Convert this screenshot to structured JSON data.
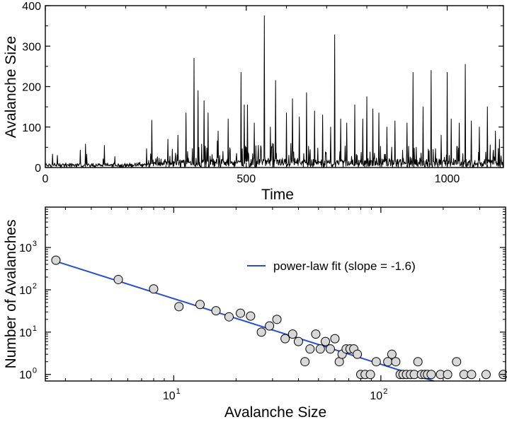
{
  "chart_data": [
    {
      "type": "line",
      "name": "avalanche-time-series",
      "xlabel": "Time",
      "ylabel": "Avalanche Size",
      "xlim": [
        0,
        1140
      ],
      "ylim": [
        0,
        400
      ],
      "xticks": [
        0,
        500,
        1000
      ],
      "xtick_labels": [
        "0",
        "500",
        "1000"
      ],
      "yticks": [
        0,
        100,
        200,
        300,
        400
      ],
      "ytick_labels": [
        "0",
        "100",
        "200",
        "300",
        "400"
      ],
      "line_color": "#000000",
      "series": [
        {
          "name": "avalanche size",
          "peaks": [
            [
              30,
              30
            ],
            [
              100,
              58
            ],
            [
              265,
              117
            ],
            [
              305,
              70
            ],
            [
              330,
              80
            ],
            [
              350,
              135
            ],
            [
              370,
              270
            ],
            [
              380,
              190
            ],
            [
              395,
              165
            ],
            [
              405,
              135
            ],
            [
              430,
              90
            ],
            [
              455,
              120
            ],
            [
              487,
              235
            ],
            [
              495,
              155
            ],
            [
              503,
              155
            ],
            [
              520,
              110
            ],
            [
              545,
              375
            ],
            [
              560,
              100
            ],
            [
              573,
              215
            ],
            [
              600,
              135
            ],
            [
              615,
              170
            ],
            [
              632,
              125
            ],
            [
              650,
              185
            ],
            [
              670,
              140
            ],
            [
              690,
              130
            ],
            [
              710,
              100
            ],
            [
              720,
              328
            ],
            [
              735,
              120
            ],
            [
              750,
              110
            ],
            [
              770,
              155
            ],
            [
              790,
              120
            ],
            [
              800,
              175
            ],
            [
              815,
              145
            ],
            [
              830,
              135
            ],
            [
              850,
              100
            ],
            [
              870,
              115
            ],
            [
              900,
              110
            ],
            [
              915,
              235
            ],
            [
              940,
              150
            ],
            [
              960,
              240
            ],
            [
              985,
              80
            ],
            [
              1000,
              235
            ],
            [
              1010,
              120
            ],
            [
              1030,
              110
            ],
            [
              1045,
              255
            ],
            [
              1060,
              115
            ],
            [
              1080,
              100
            ],
            [
              1100,
              150
            ],
            [
              1120,
              90
            ],
            [
              1130,
              70
            ]
          ]
        }
      ]
    },
    {
      "type": "scatter",
      "name": "avalanche-size-distribution",
      "xlabel": "Avalanche Size",
      "ylabel": "Number of Avalanches",
      "xscale": "log",
      "yscale": "log",
      "xlim": [
        2.4,
        400
      ],
      "ylim": [
        0.7,
        9000
      ],
      "xticks": [
        10,
        100
      ],
      "xtick_labels": [
        {
          "base": "10",
          "exp": "1"
        },
        {
          "base": "10",
          "exp": "2"
        }
      ],
      "yticks": [
        1,
        10,
        100,
        1000
      ],
      "ytick_labels": [
        {
          "base": "10",
          "exp": "0"
        },
        {
          "base": "10",
          "exp": "1"
        },
        {
          "base": "10",
          "exp": "2"
        },
        {
          "base": "10",
          "exp": "3"
        }
      ],
      "legend": {
        "label": "power-law fit (slope = -1.6)",
        "position": "upper-right"
      },
      "marker_fill": "#d8d8d8",
      "fit_color": "#2a4fd1",
      "fit": {
        "slope": -1.6,
        "x_start": 2.6,
        "y_start": 500,
        "x_end": 180,
        "y_end": 0.58
      },
      "points": [
        [
          2.7,
          500
        ],
        [
          5.4,
          175
        ],
        [
          8,
          105
        ],
        [
          10.6,
          40
        ],
        [
          13.4,
          45
        ],
        [
          16,
          32
        ],
        [
          18.5,
          23
        ],
        [
          21,
          28
        ],
        [
          23.5,
          24
        ],
        [
          26.5,
          10
        ],
        [
          29,
          14
        ],
        [
          31.5,
          20
        ],
        [
          34.5,
          7
        ],
        [
          37.5,
          9
        ],
        [
          40,
          6
        ],
        [
          43,
          2
        ],
        [
          45.5,
          4
        ],
        [
          48.5,
          9
        ],
        [
          51,
          4
        ],
        [
          54,
          6
        ],
        [
          57,
          4
        ],
        [
          60,
          7
        ],
        [
          63,
          2
        ],
        [
          65,
          3
        ],
        [
          68,
          4
        ],
        [
          71,
          4
        ],
        [
          74,
          4
        ],
        [
          77,
          3
        ],
        [
          80,
          1
        ],
        [
          84,
          1
        ],
        [
          89,
          1
        ],
        [
          95,
          2
        ],
        [
          108,
          2
        ],
        [
          113,
          3
        ],
        [
          118,
          2
        ],
        [
          124,
          1
        ],
        [
          128,
          1
        ],
        [
          133,
          1
        ],
        [
          139,
          1
        ],
        [
          145,
          1
        ],
        [
          151,
          2
        ],
        [
          157,
          1
        ],
        [
          163,
          1
        ],
        [
          168,
          1
        ],
        [
          175,
          1
        ],
        [
          194,
          1
        ],
        [
          210,
          1
        ],
        [
          232,
          2
        ],
        [
          252,
          1
        ],
        [
          274,
          1
        ],
        [
          322,
          1
        ],
        [
          390,
          1
        ]
      ]
    }
  ]
}
